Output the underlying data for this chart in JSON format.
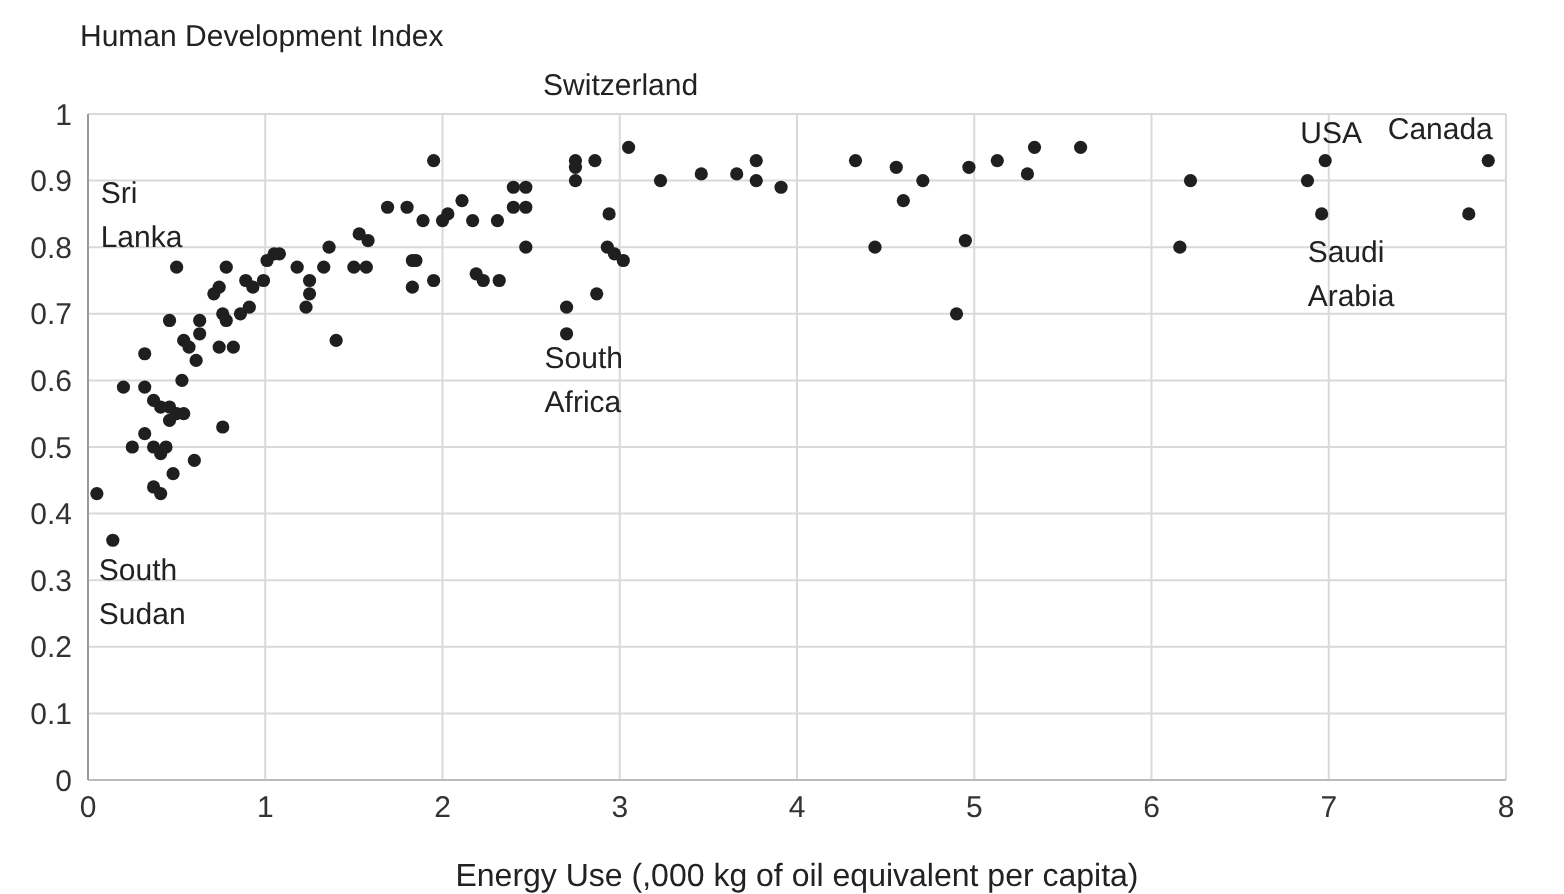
{
  "chart_data": {
    "type": "scatter",
    "ylabel": "Human Development Index",
    "xlabel": "Energy Use (,000 kg of oil equivalent per capita)",
    "x": [
      0.05,
      0.14,
      0.5,
      0.78,
      0.71,
      0.74,
      0.89,
      0.93,
      0.99,
      1.05,
      1.08,
      1.01,
      1.18,
      1.33,
      1.25,
      1.25,
      1.23,
      1.4,
      1.36,
      1.5,
      1.57,
      1.53,
      1.58,
      1.83,
      1.83,
      0.46,
      0.63,
      0.63,
      0.54,
      0.57,
      0.61,
      0.78,
      0.76,
      0.86,
      0.91,
      0.74,
      0.82,
      0.32,
      0.53,
      0.2,
      0.32,
      0.37,
      0.41,
      0.46,
      0.5,
      0.54,
      0.46,
      0.76,
      0.32,
      0.25,
      0.37,
      0.41,
      0.44,
      0.6,
      0.37,
      0.48,
      0.41,
      1.95,
      1.69,
      1.8,
      1.89,
      2.0,
      2.03,
      2.11,
      2.17,
      2.31,
      2.4,
      2.47,
      2.4,
      2.47,
      2.47,
      1.85,
      1.95,
      2.19,
      2.23,
      2.32,
      2.75,
      2.75,
      2.75,
      2.86,
      3.05,
      2.94,
      2.93,
      2.97,
      3.02,
      2.87,
      2.7,
      2.7,
      3.23,
      3.46,
      3.66,
      3.77,
      3.77,
      3.91,
      4.33,
      4.56,
      4.6,
      4.71,
      4.44,
      4.97,
      4.95,
      4.9,
      5.13,
      5.3,
      5.34,
      5.6,
      6.22,
      6.16,
      6.88,
      6.98,
      6.96,
      7.9,
      7.79
    ],
    "values": [
      0.43,
      0.36,
      0.77,
      0.77,
      0.73,
      0.74,
      0.75,
      0.74,
      0.75,
      0.79,
      0.79,
      0.78,
      0.77,
      0.77,
      0.75,
      0.73,
      0.71,
      0.66,
      0.8,
      0.77,
      0.77,
      0.82,
      0.81,
      0.78,
      0.74,
      0.69,
      0.69,
      0.67,
      0.66,
      0.65,
      0.63,
      0.69,
      0.7,
      0.7,
      0.71,
      0.65,
      0.65,
      0.64,
      0.6,
      0.59,
      0.59,
      0.57,
      0.56,
      0.56,
      0.55,
      0.55,
      0.54,
      0.53,
      0.52,
      0.5,
      0.5,
      0.49,
      0.5,
      0.48,
      0.44,
      0.46,
      0.43,
      0.93,
      0.86,
      0.86,
      0.84,
      0.84,
      0.85,
      0.87,
      0.84,
      0.84,
      0.86,
      0.86,
      0.89,
      0.89,
      0.8,
      0.78,
      0.75,
      0.76,
      0.75,
      0.75,
      0.93,
      0.92,
      0.9,
      0.93,
      0.95,
      0.85,
      0.8,
      0.79,
      0.78,
      0.73,
      0.71,
      0.67,
      0.9,
      0.91,
      0.91,
      0.93,
      0.9,
      0.89,
      0.93,
      0.92,
      0.87,
      0.9,
      0.8,
      0.92,
      0.81,
      0.7,
      0.93,
      0.91,
      0.95,
      0.95,
      0.9,
      0.8,
      0.9,
      0.93,
      0.85,
      0.93,
      0.85
    ],
    "color": "#1f1f1f",
    "marker": "circle",
    "grid": true,
    "xlim": [
      0,
      8
    ],
    "xticks": [
      0,
      1,
      2,
      3,
      4,
      5,
      6,
      7,
      8
    ],
    "ylim": [
      0,
      1
    ],
    "yticks": [
      0,
      0.1,
      0.2,
      0.3,
      0.4,
      0.5,
      0.6,
      0.7,
      0.8,
      0.9,
      1
    ],
    "annotations": [
      {
        "text": "Switzerland",
        "x": 3.05,
        "y": 0.95
      },
      {
        "text": "USA",
        "x": 6.98,
        "y": 0.93
      },
      {
        "text": "Canada",
        "x": 7.9,
        "y": 0.93
      },
      {
        "text": "Saudi Arabia",
        "x": 6.96,
        "y": 0.85
      },
      {
        "text": "South Africa",
        "x": 2.7,
        "y": 0.67
      },
      {
        "text": "Sri Lanka",
        "x": 0.5,
        "y": 0.77
      },
      {
        "text": "South Sudan",
        "x": 0.14,
        "y": 0.36
      }
    ]
  }
}
